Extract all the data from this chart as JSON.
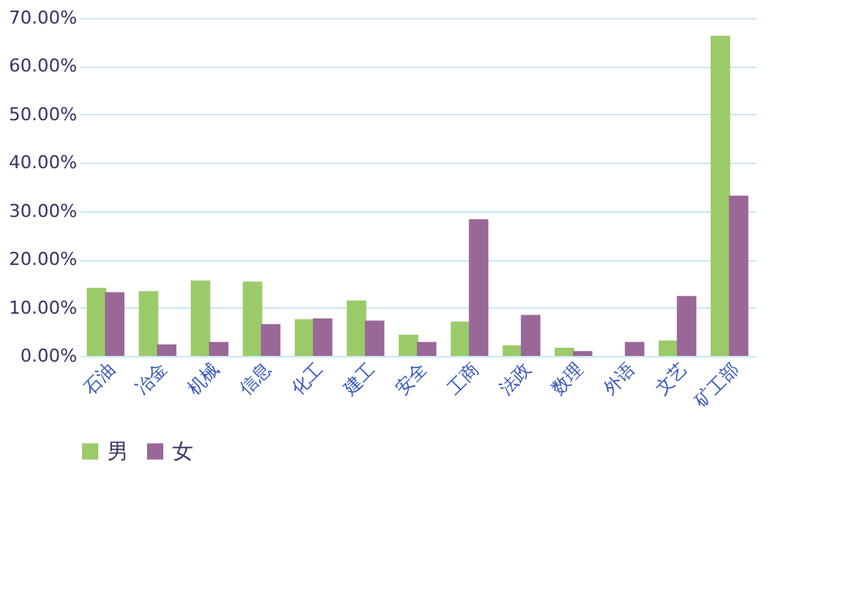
{
  "chart_data": {
    "type": "bar",
    "categories": [
      "石油",
      "冶金",
      "机械",
      "信息",
      "化工",
      "建工",
      "安全",
      "工商",
      "法政",
      "数理",
      "外语",
      "文艺",
      "矿工部"
    ],
    "series": [
      {
        "name": "男",
        "color": "#9bcb69",
        "values": [
          14.1,
          13.4,
          15.6,
          15.4,
          7.6,
          11.5,
          4.4,
          7.1,
          2.2,
          1.7,
          0,
          3.2,
          66.3
        ]
      },
      {
        "name": "女",
        "color": "#9a6898",
        "values": [
          13.2,
          2.4,
          2.9,
          6.6,
          7.8,
          7.3,
          2.9,
          28.3,
          8.5,
          1.0,
          2.9,
          12.4,
          33.2
        ]
      }
    ],
    "ylim": [
      0,
      70
    ],
    "yticks": [
      {
        "value": 0,
        "label": "0.00%"
      },
      {
        "value": 10,
        "label": "10.00%"
      },
      {
        "value": 20,
        "label": "20.00%"
      },
      {
        "value": 30,
        "label": "30.00%"
      },
      {
        "value": 40,
        "label": "40.00%"
      },
      {
        "value": 50,
        "label": "50.00%"
      },
      {
        "value": 60,
        "label": "60.00%"
      },
      {
        "value": 70,
        "label": "70.00%"
      }
    ],
    "grid": "y",
    "legend": "bottom"
  }
}
